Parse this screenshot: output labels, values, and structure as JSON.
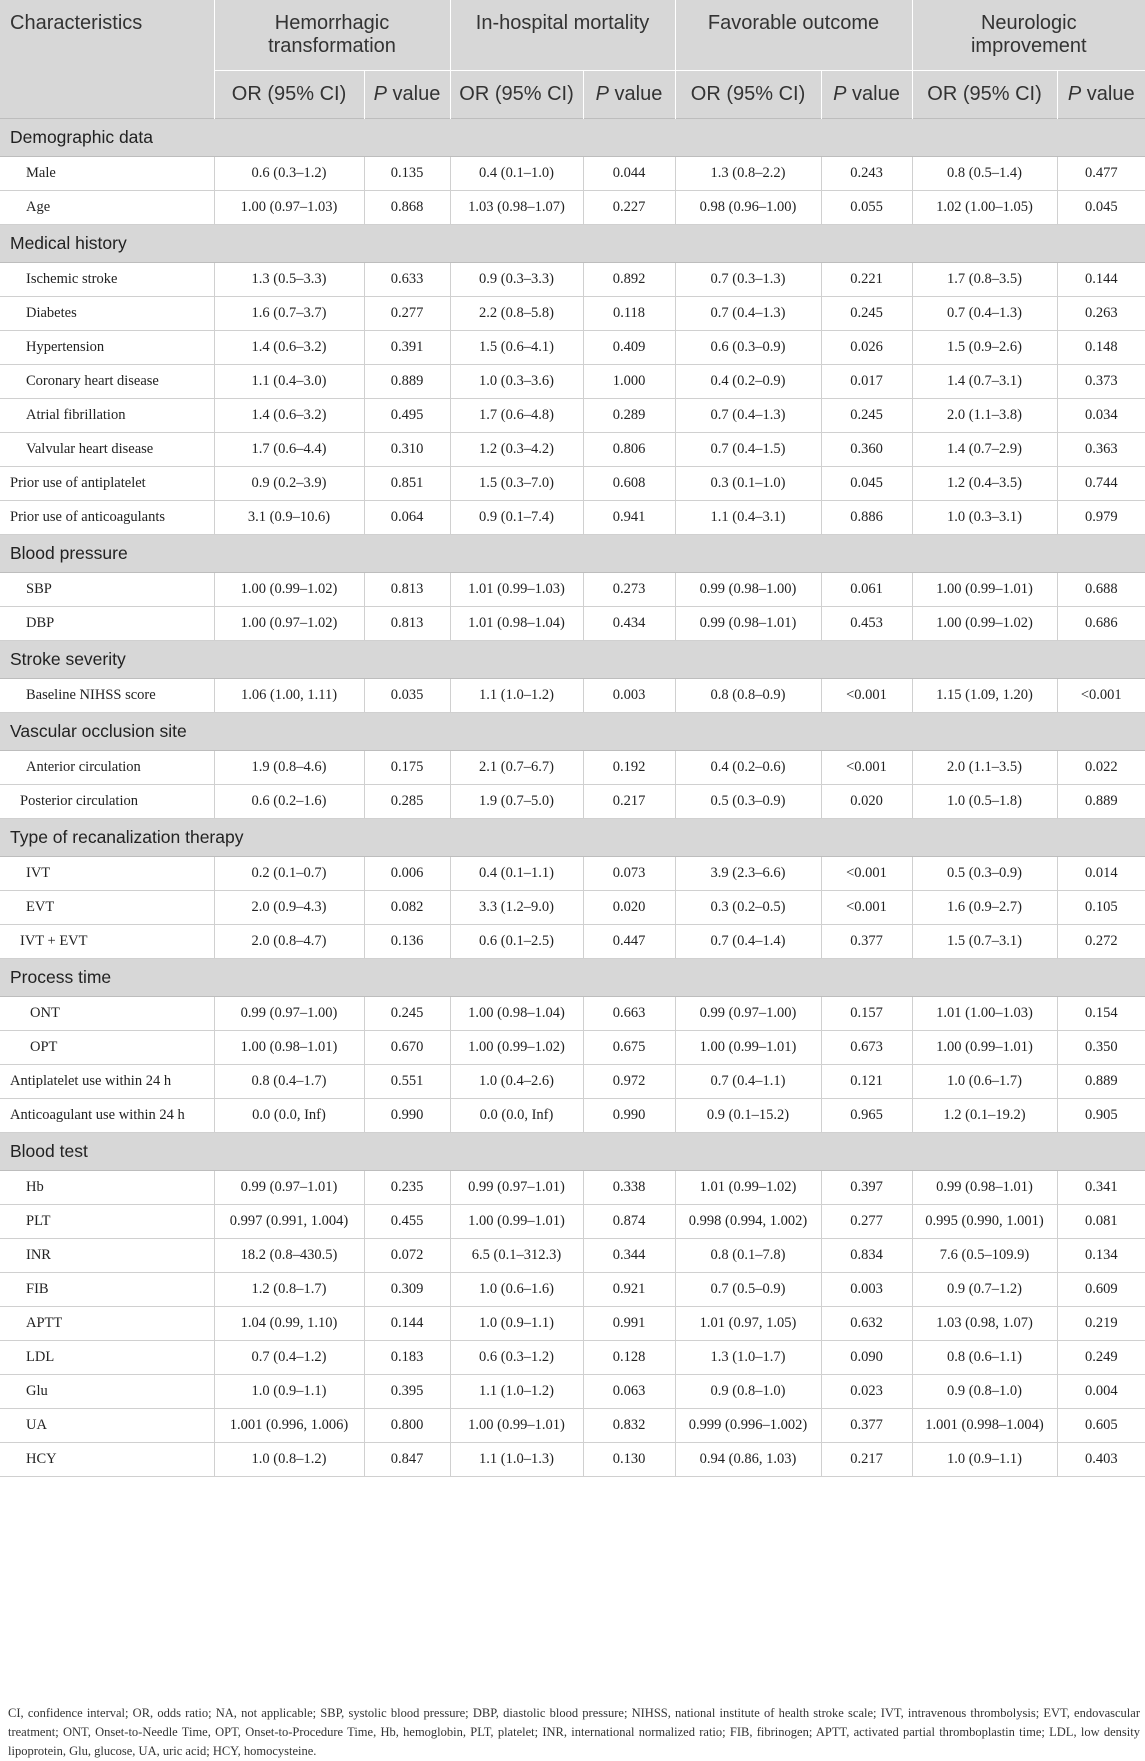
{
  "header": {
    "characteristics": "Characteristics",
    "groups": [
      "Hemorrhagic transformation",
      "In-hospital mortality",
      "Favorable outcome",
      "Neurologic improvement"
    ],
    "or_label": "OR (95% CI)",
    "p_italic": "P",
    "p_rest": " value"
  },
  "sections": [
    {
      "title": "Demographic data",
      "rows": [
        {
          "label": "Male",
          "indent": "ind",
          "values": [
            "0.6 (0.3–1.2)",
            "0.135",
            "0.4 (0.1–1.0)",
            "0.044",
            "1.3 (0.8–2.2)",
            "0.243",
            "0.8 (0.5–1.4)",
            "0.477"
          ]
        },
        {
          "label": "Age",
          "indent": "ind",
          "values": [
            "1.00 (0.97–1.03)",
            "0.868",
            "1.03 (0.98–1.07)",
            "0.227",
            "0.98 (0.96–1.00)",
            "0.055",
            "1.02 (1.00–1.05)",
            "0.045"
          ]
        }
      ]
    },
    {
      "title": "Medical history",
      "rows": [
        {
          "label": "Ischemic stroke",
          "indent": "ind",
          "values": [
            "1.3 (0.5–3.3)",
            "0.633",
            "0.9 (0.3–3.3)",
            "0.892",
            "0.7 (0.3–1.3)",
            "0.221",
            "1.7 (0.8–3.5)",
            "0.144"
          ]
        },
        {
          "label": "Diabetes",
          "indent": "ind",
          "values": [
            "1.6 (0.7–3.7)",
            "0.277",
            "2.2 (0.8–5.8)",
            "0.118",
            "0.7 (0.4–1.3)",
            "0.245",
            "0.7 (0.4–1.3)",
            "0.263"
          ]
        },
        {
          "label": "Hypertension",
          "indent": "ind",
          "values": [
            "1.4 (0.6–3.2)",
            "0.391",
            "1.5 (0.6–4.1)",
            "0.409",
            "0.6 (0.3–0.9)",
            "0.026",
            "1.5 (0.9–2.6)",
            "0.148"
          ]
        },
        {
          "label": "Coronary heart disease",
          "indent": "ind",
          "values": [
            "1.1 (0.4–3.0)",
            "0.889",
            "1.0 (0.3–3.6)",
            "1.000",
            "0.4 (0.2–0.9)",
            "0.017",
            "1.4 (0.7–3.1)",
            "0.373"
          ]
        },
        {
          "label": "Atrial fibrillation",
          "indent": "ind",
          "values": [
            "1.4 (0.6–3.2)",
            "0.495",
            "1.7 (0.6–4.8)",
            "0.289",
            "0.7 (0.4–1.3)",
            "0.245",
            "2.0 (1.1–3.8)",
            "0.034"
          ]
        },
        {
          "label": "Valvular heart disease",
          "indent": "ind",
          "values": [
            "1.7 (0.6–4.4)",
            "0.310",
            "1.2 (0.3–4.2)",
            "0.806",
            "0.7 (0.4–1.5)",
            "0.360",
            "1.4 (0.7–2.9)",
            "0.363"
          ]
        },
        {
          "label": "Prior use of antiplatelet",
          "indent": "",
          "values": [
            "0.9 (0.2–3.9)",
            "0.851",
            "1.5 (0.3–7.0)",
            "0.608",
            "0.3 (0.1–1.0)",
            "0.045",
            "1.2 (0.4–3.5)",
            "0.744"
          ]
        },
        {
          "label": "Prior use of anticoagulants",
          "indent": "",
          "values": [
            "3.1 (0.9–10.6)",
            "0.064",
            "0.9 (0.1–7.4)",
            "0.941",
            "1.1 (0.4–3.1)",
            "0.886",
            "1.0 (0.3–3.1)",
            "0.979"
          ]
        }
      ]
    },
    {
      "title": "Blood pressure",
      "rows": [
        {
          "label": "SBP",
          "indent": "ind",
          "values": [
            "1.00 (0.99–1.02)",
            "0.813",
            "1.01 (0.99–1.03)",
            "0.273",
            "0.99 (0.98–1.00)",
            "0.061",
            "1.00 (0.99–1.01)",
            "0.688"
          ]
        },
        {
          "label": "DBP",
          "indent": "ind",
          "values": [
            "1.00 (0.97–1.02)",
            "0.813",
            "1.01 (0.98–1.04)",
            "0.434",
            "0.99 (0.98–1.01)",
            "0.453",
            "1.00 (0.99–1.02)",
            "0.686"
          ]
        }
      ]
    },
    {
      "title": "Stroke severity",
      "rows": [
        {
          "label": "Baseline NIHSS score",
          "indent": "ind",
          "values": [
            "1.06 (1.00, 1.11)",
            "0.035",
            "1.1 (1.0–1.2)",
            "0.003",
            "0.8 (0.8–0.9)",
            "<0.001",
            "1.15 (1.09, 1.20)",
            "<0.001"
          ]
        }
      ]
    },
    {
      "title": "Vascular occlusion site",
      "rows": [
        {
          "label": "Anterior circulation",
          "indent": "ind",
          "values": [
            "1.9 (0.8–4.6)",
            "0.175",
            "2.1 (0.7–6.7)",
            "0.192",
            "0.4 (0.2–0.6)",
            "<0.001",
            "2.0 (1.1–3.5)",
            "0.022"
          ]
        },
        {
          "label": "Posterior circulation",
          "indent": "ind3",
          "values": [
            "0.6 (0.2–1.6)",
            "0.285",
            "1.9 (0.7–5.0)",
            "0.217",
            "0.5 (0.3–0.9)",
            "0.020",
            "1.0 (0.5–1.8)",
            "0.889"
          ]
        }
      ]
    },
    {
      "title": "Type of recanalization therapy",
      "rows": [
        {
          "label": "IVT",
          "indent": "ind",
          "values": [
            "0.2 (0.1–0.7)",
            "0.006",
            "0.4 (0.1–1.1)",
            "0.073",
            "3.9 (2.3–6.6)",
            "<0.001",
            "0.5 (0.3–0.9)",
            "0.014"
          ]
        },
        {
          "label": "EVT",
          "indent": "ind",
          "values": [
            "2.0 (0.9–4.3)",
            "0.082",
            "3.3 (1.2–9.0)",
            "0.020",
            "0.3 (0.2–0.5)",
            "<0.001",
            "1.6 (0.9–2.7)",
            "0.105"
          ]
        },
        {
          "label": "IVT + EVT",
          "indent": "ind3",
          "values": [
            "2.0 (0.8–4.7)",
            "0.136",
            "0.6 (0.1–2.5)",
            "0.447",
            "0.7 (0.4–1.4)",
            "0.377",
            "1.5 (0.7–3.1)",
            "0.272"
          ]
        }
      ]
    },
    {
      "title": "Process time",
      "rows": [
        {
          "label": "ONT",
          "indent": "ind2",
          "values": [
            "0.99 (0.97–1.00)",
            "0.245",
            "1.00 (0.98–1.04)",
            "0.663",
            "0.99 (0.97–1.00)",
            "0.157",
            "1.01 (1.00–1.03)",
            "0.154"
          ]
        },
        {
          "label": "OPT",
          "indent": "ind2",
          "values": [
            "1.00 (0.98–1.01)",
            "0.670",
            "1.00 (0.99–1.02)",
            "0.675",
            "1.00 (0.99–1.01)",
            "0.673",
            "1.00 (0.99–1.01)",
            "0.350"
          ]
        },
        {
          "label": "Antiplatelet use within 24 h",
          "indent": "",
          "values": [
            "0.8 (0.4–1.7)",
            "0.551",
            "1.0 (0.4–2.6)",
            "0.972",
            "0.7 (0.4–1.1)",
            "0.121",
            "1.0 (0.6–1.7)",
            "0.889"
          ]
        },
        {
          "label": "Anticoagulant use within 24 h",
          "indent": "",
          "values": [
            "0.0 (0.0, Inf)",
            "0.990",
            "0.0 (0.0, Inf)",
            "0.990",
            "0.9 (0.1–15.2)",
            "0.965",
            "1.2 (0.1–19.2)",
            "0.905"
          ]
        }
      ]
    },
    {
      "title": "Blood test",
      "rows": [
        {
          "label": "Hb",
          "indent": "ind",
          "values": [
            "0.99 (0.97–1.01)",
            "0.235",
            "0.99 (0.97–1.01)",
            "0.338",
            "1.01 (0.99–1.02)",
            "0.397",
            "0.99 (0.98–1.01)",
            "0.341"
          ]
        },
        {
          "label": "PLT",
          "indent": "ind",
          "values": [
            "0.997 (0.991, 1.004)",
            "0.455",
            "1.00 (0.99–1.01)",
            "0.874",
            "0.998 (0.994, 1.002)",
            "0.277",
            "0.995 (0.990, 1.001)",
            "0.081"
          ]
        },
        {
          "label": "INR",
          "indent": "ind",
          "values": [
            "18.2 (0.8–430.5)",
            "0.072",
            "6.5 (0.1–312.3)",
            "0.344",
            "0.8 (0.1–7.8)",
            "0.834",
            "7.6 (0.5–109.9)",
            "0.134"
          ]
        },
        {
          "label": "FIB",
          "indent": "ind",
          "values": [
            "1.2 (0.8–1.7)",
            "0.309",
            "1.0 (0.6–1.6)",
            "0.921",
            "0.7 (0.5–0.9)",
            "0.003",
            "0.9 (0.7–1.2)",
            "0.609"
          ]
        },
        {
          "label": "APTT",
          "indent": "ind",
          "values": [
            "1.04 (0.99, 1.10)",
            "0.144",
            "1.0 (0.9–1.1)",
            "0.991",
            "1.01 (0.97, 1.05)",
            "0.632",
            "1.03 (0.98, 1.07)",
            "0.219"
          ]
        },
        {
          "label": "LDL",
          "indent": "ind",
          "values": [
            "0.7 (0.4–1.2)",
            "0.183",
            "0.6 (0.3–1.2)",
            "0.128",
            "1.3 (1.0–1.7)",
            "0.090",
            "0.8 (0.6–1.1)",
            "0.249"
          ]
        },
        {
          "label": "Glu",
          "indent": "ind",
          "values": [
            "1.0 (0.9–1.1)",
            "0.395",
            "1.1 (1.0–1.2)",
            "0.063",
            "0.9 (0.8–1.0)",
            "0.023",
            "0.9 (0.8–1.0)",
            "0.004"
          ]
        },
        {
          "label": "UA",
          "indent": "ind",
          "values": [
            "1.001 (0.996, 1.006)",
            "0.800",
            "1.00 (0.99–1.01)",
            "0.832",
            "0.999 (0.996–1.002)",
            "0.377",
            "1.001 (0.998–1.004)",
            "0.605"
          ]
        },
        {
          "label": "HCY",
          "indent": "ind",
          "values": [
            "1.0 (0.8–1.2)",
            "0.847",
            "1.1 (1.0–1.3)",
            "0.130",
            "0.94 (0.86, 1.03)",
            "0.217",
            "1.0 (0.9–1.1)",
            "0.403"
          ]
        }
      ]
    }
  ],
  "footnote": "CI, confidence interval; OR, odds ratio; NA, not applicable; SBP, systolic blood pressure; DBP, diastolic blood pressure; NIHSS, national institute of health stroke scale; IVT, intravenous thrombolysis; EVT, endovascular treatment; ONT, Onset-to-Needle Time, OPT, Onset-to-Procedure Time, Hb, hemoglobin, PLT, platelet; INR, international normalized ratio; FIB, fibrinogen; APTT, activated partial thromboplastin time; LDL, low density lipoprotein, Glu, glucose, UA, uric acid; HCY, homocysteine."
}
